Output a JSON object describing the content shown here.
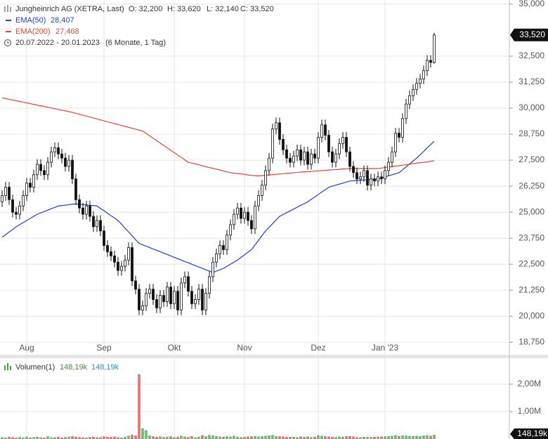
{
  "chart_data": {
    "type": "candlestick",
    "header": {
      "title": "Jungheinrich AG (XETRA, Last)",
      "ohlc": [
        "O: 32,200",
        "H: 33,620",
        "L: 32,140",
        "C: 33,520"
      ],
      "range": "20.07.2022 - 20.01.2023",
      "period": "(6 Monate, 1 Tag)"
    },
    "categories": [
      null,
      null,
      null,
      null,
      null,
      null,
      null,
      "Aug",
      null,
      null,
      null,
      null,
      null,
      null,
      null,
      null,
      null,
      null,
      null,
      null,
      null,
      null,
      null,
      null,
      null,
      null,
      null,
      null,
      null,
      "Sep",
      null,
      null,
      null,
      null,
      null,
      null,
      null,
      null,
      null,
      null,
      null,
      null,
      null,
      null,
      null,
      null,
      null,
      null,
      null,
      "Okt",
      null,
      null,
      null,
      null,
      null,
      null,
      null,
      null,
      null,
      null,
      null,
      null,
      null,
      null,
      null,
      null,
      null,
      null,
      null,
      "Nov",
      null,
      null,
      null,
      null,
      null,
      null,
      null,
      null,
      null,
      null,
      null,
      null,
      null,
      null,
      null,
      null,
      null,
      null,
      null,
      null,
      "Dez",
      null,
      null,
      null,
      null,
      null,
      null,
      null,
      null,
      null,
      null,
      null,
      null,
      null,
      null,
      null,
      null,
      null,
      null,
      "Jan '23",
      null,
      null,
      null,
      null,
      null,
      null,
      null,
      null,
      null,
      null,
      null,
      null,
      null,
      null
    ],
    "open": [
      25500,
      25800,
      26200,
      25600,
      25000,
      24900,
      25300,
      25800,
      26400,
      26200,
      26800,
      27300,
      27000,
      26800,
      27400,
      27900,
      28100,
      27800,
      27600,
      27200,
      27500,
      26600,
      25600,
      25200,
      24900,
      25300,
      24800,
      24300,
      24600,
      24100,
      23400,
      23100,
      22900,
      22600,
      22200,
      22400,
      22700,
      23300,
      21700,
      21300,
      20300,
      20500,
      21100,
      21300,
      20800,
      20400,
      21000,
      20700,
      21400,
      20600,
      21200,
      20300,
      21600,
      21900,
      21200,
      20600,
      20800,
      21300,
      20300,
      21100,
      21900,
      22600,
      23000,
      23400,
      23200,
      23900,
      24400,
      24900,
      25200,
      24700,
      25000,
      24600,
      24200,
      25300,
      25800,
      26300,
      27000,
      27600,
      29000,
      29300,
      28500,
      28000,
      27600,
      27400,
      27700,
      28000,
      27500,
      27900,
      27300,
      27800,
      27600,
      28600,
      29200,
      28700,
      27900,
      27400,
      27800,
      28300,
      28600,
      27900,
      27200,
      26900,
      26600,
      26700,
      27000,
      26300,
      26600,
      26500,
      26700,
      26600,
      27000,
      27400,
      27900,
      28800,
      28600,
      29500,
      30200,
      30600,
      30900,
      31200,
      31400,
      31800,
      32300,
      32200
    ],
    "high": [
      26050,
      26450,
      26450,
      25850,
      25250,
      25550,
      26050,
      26650,
      26650,
      27050,
      27550,
      27550,
      27250,
      27650,
      28150,
      28350,
      28350,
      28050,
      27850,
      27750,
      27750,
      26850,
      25850,
      25450,
      25550,
      25550,
      25050,
      24850,
      24850,
      24350,
      23650,
      23350,
      23150,
      22850,
      22650,
      22950,
      23550,
      23550,
      21950,
      21550,
      20750,
      21350,
      21550,
      21550,
      21050,
      21250,
      21250,
      21650,
      21650,
      21450,
      21450,
      21850,
      22150,
      22150,
      21450,
      21050,
      21550,
      21550,
      21350,
      22150,
      22850,
      23250,
      23650,
      23650,
      24150,
      24650,
      25150,
      25450,
      25450,
      25250,
      25250,
      24850,
      25550,
      26050,
      26550,
      27250,
      27850,
      29250,
      29550,
      29550,
      28750,
      28250,
      27850,
      27950,
      28250,
      28250,
      28150,
      28150,
      28050,
      28050,
      28850,
      29450,
      29450,
      28950,
      28150,
      28050,
      28550,
      28850,
      28850,
      28150,
      27450,
      27150,
      26950,
      27250,
      27250,
      26850,
      26850,
      26950,
      26950,
      27250,
      27650,
      28150,
      29050,
      29050,
      29750,
      30450,
      30850,
      31150,
      31450,
      31650,
      32050,
      32550,
      32550,
      33620
    ],
    "low": [
      25250,
      25550,
      25350,
      24750,
      24650,
      24650,
      25050,
      25550,
      25950,
      25950,
      26550,
      26750,
      26550,
      26550,
      27150,
      27650,
      27550,
      27350,
      26950,
      26950,
      26350,
      25350,
      24950,
      24650,
      24650,
      24550,
      24050,
      24050,
      23850,
      23150,
      22850,
      22650,
      22350,
      21950,
      21950,
      22150,
      22450,
      21450,
      21050,
      20050,
      20050,
      20250,
      20850,
      20550,
      20150,
      20150,
      20450,
      20450,
      20350,
      20350,
      20050,
      20050,
      21350,
      20950,
      20350,
      20350,
      20550,
      20050,
      20050,
      20850,
      21650,
      22350,
      22750,
      22950,
      22950,
      23650,
      24150,
      24650,
      24450,
      24450,
      24350,
      23950,
      23950,
      25050,
      25550,
      26050,
      26750,
      27350,
      28750,
      28250,
      27750,
      27350,
      27150,
      27150,
      27450,
      27250,
      27250,
      27050,
      27050,
      27350,
      27350,
      28350,
      28450,
      27650,
      27150,
      27150,
      27550,
      28050,
      27650,
      26950,
      26650,
      26350,
      26350,
      26450,
      26050,
      26050,
      26250,
      26250,
      26350,
      26350,
      26750,
      27150,
      27650,
      28350,
      28350,
      29250,
      29950,
      30350,
      30650,
      30950,
      31150,
      31550,
      31950,
      32140
    ],
    "close": [
      25800,
      26200,
      25600,
      25000,
      24900,
      25300,
      25800,
      26400,
      26200,
      26800,
      27300,
      27000,
      26800,
      27400,
      27900,
      28100,
      27800,
      27600,
      27200,
      27500,
      26600,
      25600,
      25200,
      24900,
      25300,
      24800,
      24300,
      24600,
      24100,
      23400,
      23100,
      22900,
      22600,
      22200,
      22400,
      22700,
      23300,
      21700,
      21300,
      20300,
      20500,
      21100,
      21300,
      20800,
      20400,
      21000,
      20700,
      21400,
      20600,
      21200,
      20300,
      21600,
      21900,
      21200,
      20600,
      20800,
      21300,
      20300,
      21100,
      21900,
      22600,
      23000,
      23400,
      23200,
      23900,
      24400,
      24900,
      25200,
      24700,
      25000,
      24600,
      24200,
      25300,
      25800,
      26300,
      27000,
      27600,
      29000,
      29300,
      28500,
      28000,
      27600,
      27400,
      27700,
      28000,
      27500,
      27900,
      27300,
      27800,
      27600,
      28600,
      29200,
      28700,
      27900,
      27400,
      27800,
      28300,
      28600,
      27900,
      27200,
      26900,
      26600,
      26700,
      27000,
      26300,
      26600,
      26500,
      26700,
      26600,
      27000,
      27400,
      27900,
      28800,
      28600,
      29500,
      30200,
      30600,
      30900,
      31200,
      31400,
      31800,
      32300,
      32200,
      33520
    ],
    "last_label": "33,520",
    "candle_up": "#ffffff",
    "candle_down": "#111111",
    "candle_outline": "#111111",
    "ylim": [
      18150,
      35200
    ],
    "yticks": [
      {
        "value": 18750,
        "label": "18,750"
      },
      {
        "value": 20000,
        "label": "20,000"
      },
      {
        "value": 21250,
        "label": "21,250"
      },
      {
        "value": 22500,
        "label": "22,500"
      },
      {
        "value": 23750,
        "label": "23,750"
      },
      {
        "value": 25000,
        "label": "25,000"
      },
      {
        "value": 26250,
        "label": "26,250"
      },
      {
        "value": 27500,
        "label": "27,500"
      },
      {
        "value": 28750,
        "label": "28,750"
      },
      {
        "value": 30000,
        "label": "30,000"
      },
      {
        "value": 31250,
        "label": "31,250"
      },
      {
        "value": 32500,
        "label": "32,500"
      },
      {
        "value": 35000,
        "label": "35,000"
      }
    ],
    "grid": true,
    "series": [
      {
        "name": "EMA(50)",
        "color": "#1f3fd6",
        "value_label": "28,407",
        "values": [
          23800,
          23920,
          24050,
          24170,
          24300,
          24400,
          24500,
          24600,
          24700,
          24800,
          24900,
          24970,
          25030,
          25100,
          25170,
          25230,
          25300,
          25320,
          25340,
          25360,
          25380,
          25400,
          25380,
          25370,
          25350,
          25330,
          25320,
          25300,
          25180,
          25070,
          24950,
          24830,
          24720,
          24600,
          24420,
          24230,
          24050,
          23870,
          23680,
          23500,
          23430,
          23370,
          23300,
          23230,
          23170,
          23100,
          23030,
          22970,
          22900,
          22830,
          22770,
          22700,
          22630,
          22570,
          22500,
          22430,
          22370,
          22300,
          22230,
          22170,
          22100,
          22170,
          22230,
          22300,
          22400,
          22500,
          22600,
          22700,
          22830,
          22950,
          23080,
          23200,
          23430,
          23650,
          23880,
          24100,
          24280,
          24450,
          24630,
          24800,
          24890,
          24980,
          25060,
          25150,
          25240,
          25330,
          25410,
          25500,
          25620,
          25730,
          25850,
          25970,
          26080,
          26200,
          26250,
          26300,
          26350,
          26400,
          26450,
          26500,
          26510,
          26530,
          26540,
          26550,
          26560,
          26580,
          26590,
          26600,
          26650,
          26700,
          26750,
          26800,
          26850,
          26900,
          27040,
          27180,
          27320,
          27460,
          27600,
          27760,
          27920,
          28090,
          28250,
          28407
        ]
      },
      {
        "name": "EMA(200)",
        "color": "#e8412c",
        "value_label": "27,468",
        "values": [
          30500,
          30465,
          30430,
          30395,
          30360,
          30325,
          30290,
          30255,
          30220,
          30185,
          30150,
          30115,
          30080,
          30045,
          30010,
          29975,
          29940,
          29905,
          29870,
          29835,
          29800,
          29755,
          29710,
          29665,
          29620,
          29575,
          29530,
          29485,
          29440,
          29395,
          29350,
          29305,
          29260,
          29215,
          29170,
          29125,
          29080,
          29035,
          28990,
          28945,
          28900,
          28785,
          28670,
          28555,
          28440,
          28325,
          28210,
          28095,
          27980,
          27865,
          27750,
          27635,
          27520,
          27400,
          27360,
          27320,
          27280,
          27230,
          27190,
          27150,
          27110,
          27070,
          27030,
          26980,
          26940,
          26900,
          26880,
          26860,
          26840,
          26820,
          26790,
          26770,
          26760,
          26750,
          26760,
          26780,
          26790,
          26810,
          26820,
          26840,
          26850,
          26870,
          26880,
          26900,
          26910,
          26930,
          26940,
          26950,
          26960,
          26980,
          26990,
          27000,
          27010,
          27030,
          27040,
          27050,
          27060,
          27080,
          27090,
          27100,
          27100,
          27100,
          27100,
          27100,
          27100,
          27100,
          27100,
          27100,
          27120,
          27150,
          27170,
          27190,
          27220,
          27240,
          27260,
          27290,
          27310,
          27330,
          27360,
          27380,
          27400,
          27420,
          27450,
          27468
        ]
      }
    ],
    "volume": {
      "name": "Volumen(1)",
      "header_labels": [
        "148,19k",
        "148,19k"
      ],
      "last_label": "148,19k",
      "up_color": "#6fbf6f",
      "down_color": "#e87373",
      "ylim": [
        0,
        2950000
      ],
      "yticks": [
        {
          "value": 1000000,
          "label": "1,00M"
        },
        {
          "value": 2000000,
          "label": "2,00M"
        }
      ],
      "values": [
        60000,
        45000,
        70000,
        55000,
        40000,
        65000,
        50000,
        80000,
        45000,
        60000,
        75000,
        50000,
        40000,
        90000,
        60000,
        55000,
        70000,
        45000,
        60000,
        80000,
        95000,
        70000,
        60000,
        50000,
        45000,
        65000,
        75000,
        55000,
        60000,
        90000,
        70000,
        65000,
        80000,
        60000,
        50000,
        75000,
        110000,
        150000,
        120000,
        2360000,
        380000,
        310000,
        120000,
        90000,
        70000,
        85000,
        60000,
        75000,
        90000,
        60000,
        70000,
        110000,
        80000,
        65000,
        95000,
        60000,
        75000,
        130000,
        90000,
        140000,
        120000,
        100000,
        80000,
        70000,
        90000,
        85000,
        110000,
        70000,
        60000,
        75000,
        80000,
        90000,
        100000,
        85000,
        95000,
        110000,
        120000,
        140000,
        100000,
        90000,
        80000,
        70000,
        65000,
        75000,
        60000,
        85000,
        70000,
        80000,
        60000,
        75000,
        130000,
        110000,
        90000,
        85000,
        70000,
        65000,
        80000,
        75000,
        90000,
        95000,
        85000,
        60000,
        55000,
        70000,
        65000,
        60000,
        75000,
        80000,
        85000,
        90000,
        95000,
        110000,
        130000,
        100000,
        120000,
        115000,
        105000,
        95000,
        110000,
        100000,
        120000,
        130000,
        110000,
        148190
      ]
    }
  }
}
